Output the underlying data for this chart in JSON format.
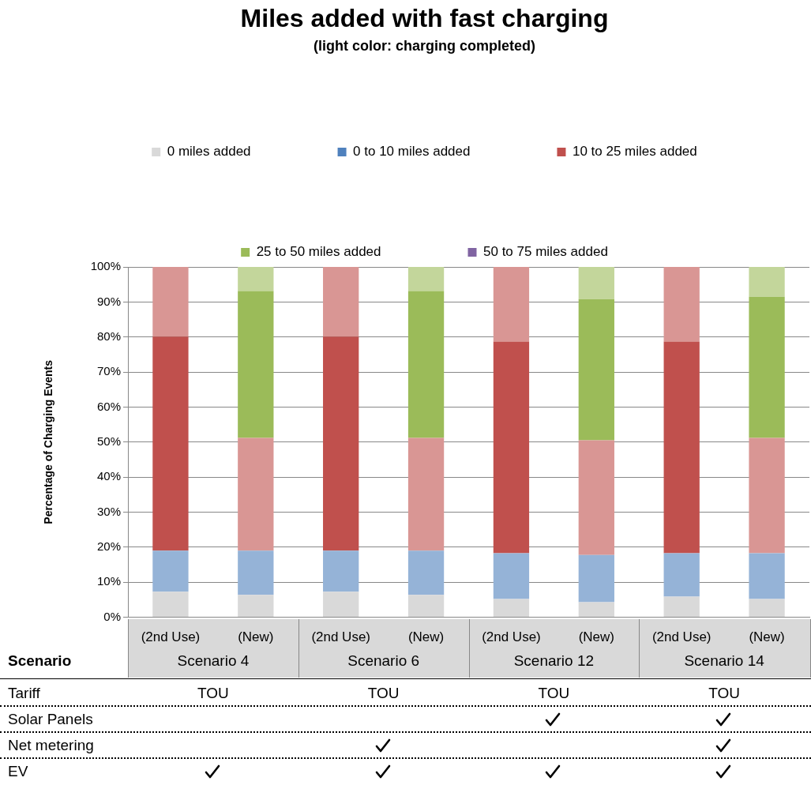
{
  "chart_data": {
    "type": "bar",
    "title": "Miles added with fast charging",
    "subtitle": "(light color: charging completed)",
    "ylabel": "Percentage of Charging Events",
    "categories": [
      "(2nd Use)",
      "(New)",
      "(2nd Use)",
      "(New)",
      "(2nd Use)",
      "(New)",
      "(2nd Use)",
      "(New)"
    ],
    "stacked": true,
    "series": [
      {
        "name": "0 miles added",
        "color": "#d9d9d9",
        "values": [
          7.3,
          6.4,
          7.3,
          6.4,
          5.2,
          4.3,
          5.9,
          5.2
        ]
      },
      {
        "name": "0 to 10 miles added",
        "color": "#4f81bd",
        "values": [
          0,
          0,
          0,
          0,
          0,
          0,
          0,
          0
        ]
      },
      {
        "color": "#95b3d7",
        "values": [
          11.7,
          12.6,
          11.7,
          12.6,
          13.1,
          13.5,
          12.4,
          13.1
        ]
      },
      {
        "name": "10 to 25 miles added",
        "color": "#c0504d",
        "values": [
          61.1,
          0,
          61.1,
          0,
          60.4,
          0,
          60.4,
          0
        ]
      },
      {
        "color": "#d99694",
        "values": [
          19.9,
          32.2,
          19.9,
          32.2,
          21.3,
          32.7,
          21.3,
          32.9
        ]
      },
      {
        "name": "25 to 50 miles added",
        "color": "#9bbb59",
        "values": [
          0,
          41.9,
          0,
          41.9,
          0,
          40.3,
          0,
          40.3
        ]
      },
      {
        "color": "#c3d69b",
        "values": [
          0,
          6.9,
          0,
          6.9,
          0,
          9.2,
          0,
          8.5
        ]
      },
      {
        "name": "50 to 75 miles added",
        "color": "#8064a2",
        "values": [
          0,
          0,
          0,
          0,
          0,
          0,
          0,
          0
        ]
      }
    ],
    "ylim": [
      0,
      100
    ],
    "yticks": [
      {
        "value": 0,
        "label": "0%"
      },
      {
        "value": 10,
        "label": "10%"
      },
      {
        "value": 20,
        "label": "20%"
      },
      {
        "value": 30,
        "label": "30%"
      },
      {
        "value": 40,
        "label": "40%"
      },
      {
        "value": 50,
        "label": "50%"
      },
      {
        "value": 60,
        "label": "60%"
      },
      {
        "value": 70,
        "label": "70%"
      },
      {
        "value": 80,
        "label": "80%"
      },
      {
        "value": 90,
        "label": "90%"
      },
      {
        "value": 100,
        "label": "100%"
      }
    ],
    "grid": "y",
    "legend": "top",
    "annotations": [
      "Scenario 4",
      "Scenario 6",
      "Scenario 12",
      "Scenario 14",
      "Scenario",
      "Tariff",
      "TOU",
      "TOU",
      "TOU",
      "TOU",
      "Solar Panels",
      "Net metering",
      "EV"
    ]
  }
}
